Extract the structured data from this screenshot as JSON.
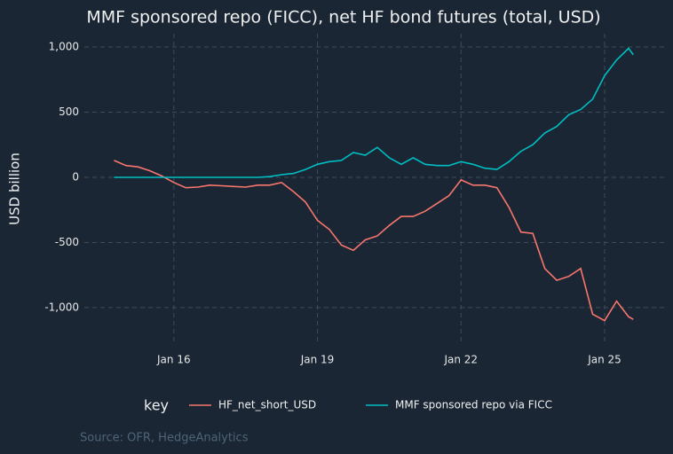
{
  "chart_data": {
    "type": "line",
    "title": "MMF sponsored repo (FICC), net HF bond futures (total, USD)",
    "y_label": "USD billion",
    "legend_title": "key",
    "source": "Source: OFR, HedgeAnalytics",
    "x": [
      2014.75,
      2015,
      2015.25,
      2015.5,
      2015.75,
      2016,
      2016.25,
      2016.5,
      2016.75,
      2017,
      2017.25,
      2017.5,
      2017.75,
      2018,
      2018.25,
      2018.5,
      2018.75,
      2019,
      2019.25,
      2019.5,
      2019.75,
      2020,
      2020.25,
      2020.5,
      2020.75,
      2021,
      2021.25,
      2021.5,
      2021.75,
      2022,
      2022.25,
      2022.5,
      2022.75,
      2023,
      2023.25,
      2023.5,
      2023.75,
      2024,
      2024.25,
      2024.5,
      2024.75,
      2025,
      2025.25,
      2025.5,
      2025.6
    ],
    "series": [
      {
        "name": "HF_net_short_USD",
        "color": "#f8766d",
        "values": [
          130,
          90,
          80,
          50,
          10,
          -40,
          -80,
          -75,
          -60,
          -65,
          -70,
          -75,
          -60,
          -60,
          -40,
          -110,
          -190,
          -330,
          -400,
          -520,
          -560,
          -480,
          -450,
          -370,
          -300,
          -300,
          -260,
          -200,
          -140,
          -20,
          -60,
          -60,
          -80,
          -230,
          -420,
          -430,
          -700,
          -790,
          -760,
          -700,
          -1050,
          -1100,
          -950,
          -1070,
          -1090
        ]
      },
      {
        "name": "MMF sponsored repo via FICC",
        "color": "#00bfc4",
        "values": [
          0,
          0,
          0,
          0,
          0,
          0,
          0,
          0,
          0,
          0,
          0,
          0,
          0,
          5,
          20,
          30,
          60,
          100,
          120,
          130,
          190,
          170,
          230,
          150,
          100,
          150,
          100,
          90,
          90,
          120,
          100,
          70,
          60,
          120,
          200,
          250,
          340,
          390,
          480,
          520,
          600,
          780,
          900,
          990,
          940
        ]
      }
    ],
    "xlim": [
      2014.13,
      2026.28
    ],
    "xticks": [
      {
        "value": 2016,
        "label": "Jan 16"
      },
      {
        "value": 2019,
        "label": "Jan 19"
      },
      {
        "value": 2022,
        "label": "Jan 22"
      },
      {
        "value": 2025,
        "label": "Jan 25"
      }
    ],
    "ylim": [
      -1259,
      1102
    ],
    "yticks": [
      {
        "value": -1000,
        "label": "-1,000"
      },
      -500,
      0,
      500,
      {
        "value": 1000,
        "label": "1,000"
      }
    ],
    "grid": true
  }
}
